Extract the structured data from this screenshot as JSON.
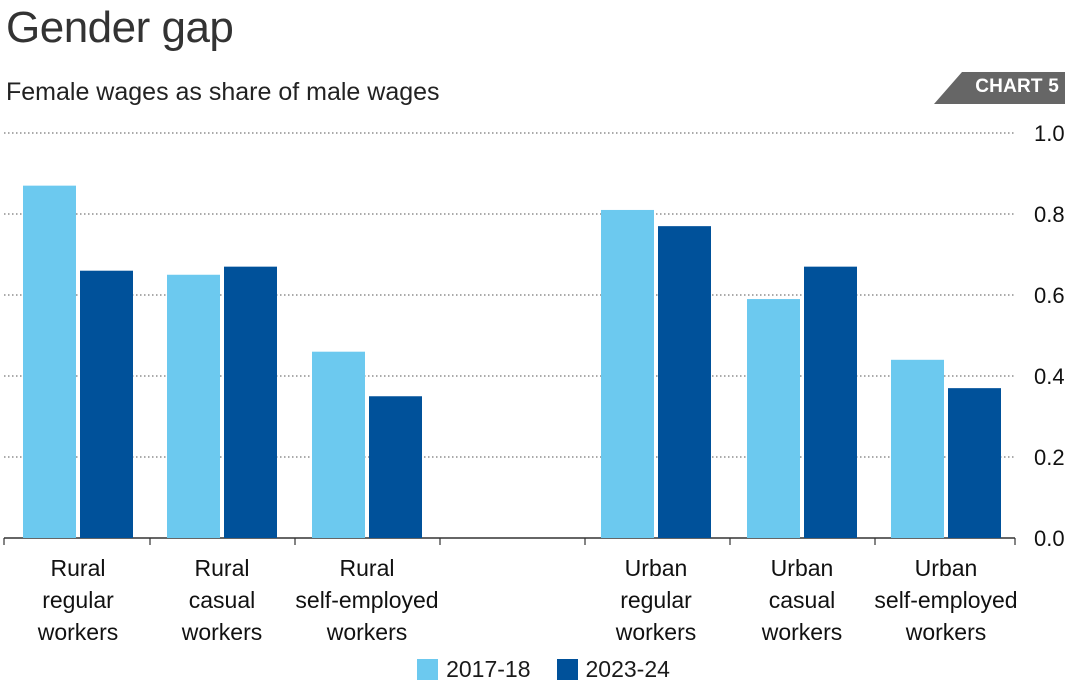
{
  "header": {
    "title": "Gender gap",
    "subtitle": "Female wages as share of male wages",
    "tag": "CHART 5"
  },
  "colors": {
    "series_2017": "#6cc9ef",
    "series_2023": "#00519a",
    "grid": "#555555",
    "tag_bg": "#666666"
  },
  "chart_data": {
    "type": "bar",
    "title": "Gender gap",
    "subtitle": "Female wages as share of male wages",
    "categories": [
      "Rural regular workers",
      "Rural casual workers",
      "Rural self-employed workers",
      "Urban regular workers",
      "Urban casual workers",
      "Urban self-employed workers"
    ],
    "category_label_lines": [
      [
        "Rural",
        "regular",
        "workers"
      ],
      [
        "Rural",
        "casual",
        "workers"
      ],
      [
        "Rural",
        "self-employed",
        "workers"
      ],
      [
        "Urban",
        "regular",
        "workers"
      ],
      [
        "Urban",
        "casual",
        "workers"
      ],
      [
        "Urban",
        "self-employed",
        "workers"
      ]
    ],
    "series": [
      {
        "name": "2017-18",
        "values": [
          0.87,
          0.65,
          0.46,
          0.81,
          0.59,
          0.44
        ]
      },
      {
        "name": "2023-24",
        "values": [
          0.66,
          0.67,
          0.35,
          0.77,
          0.67,
          0.37
        ]
      }
    ],
    "y_ticks": [
      "0.0",
      "0.2",
      "0.4",
      "0.6",
      "0.8",
      "1.0"
    ],
    "ylim": [
      0,
      1.0
    ],
    "grid": true,
    "y_axis_side": "right",
    "legend_position": "bottom-center"
  }
}
